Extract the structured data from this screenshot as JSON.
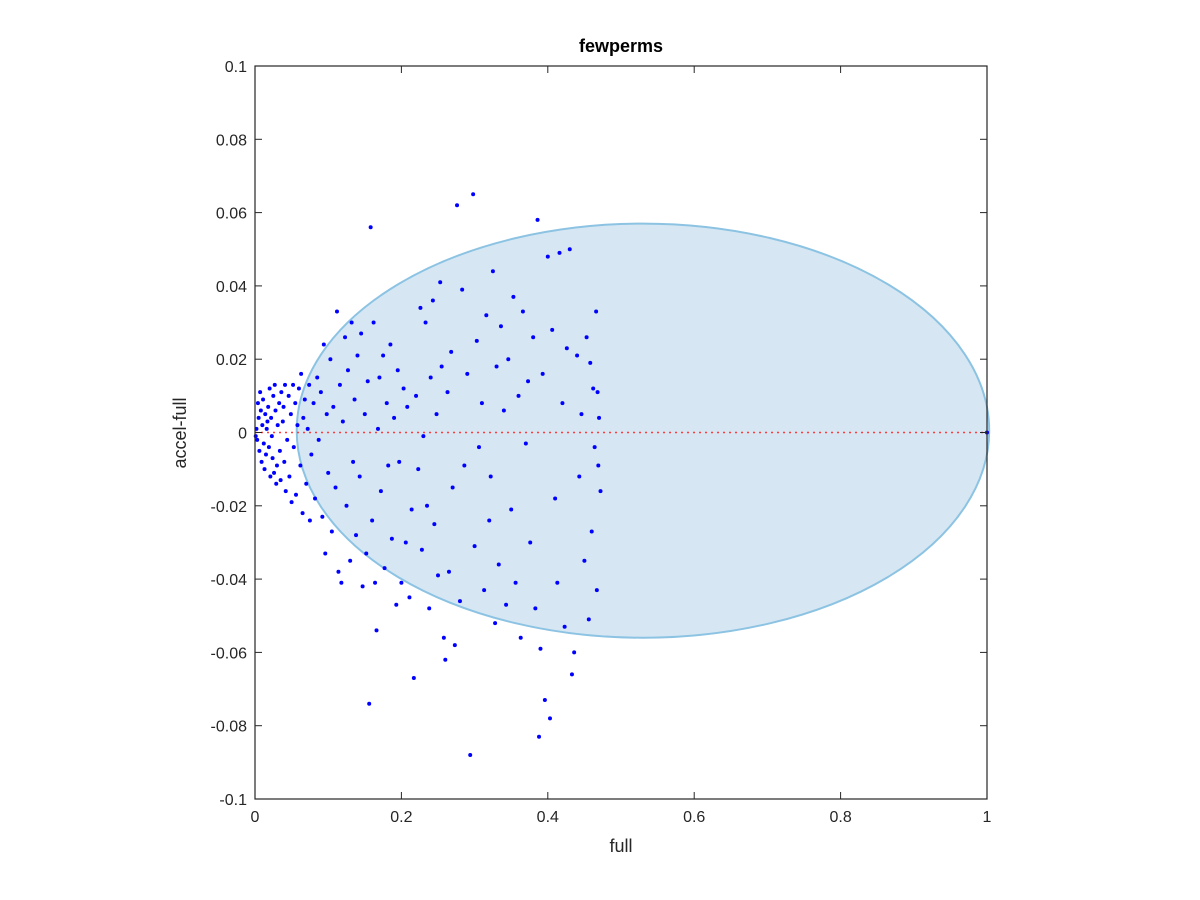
{
  "chart_data": {
    "type": "scatter",
    "title": "fewperms",
    "xlabel": "full",
    "ylabel": "accel-full",
    "xlim": [
      0,
      1
    ],
    "ylim": [
      -0.1,
      0.1
    ],
    "xticks": [
      0,
      0.2,
      0.4,
      0.6,
      0.8,
      1
    ],
    "xtick_labels": [
      "0",
      "0.2",
      "0.4",
      "0.6",
      "0.8",
      "1"
    ],
    "yticks": [
      -0.1,
      -0.08,
      -0.06,
      -0.04,
      -0.02,
      0,
      0.02,
      0.04,
      0.06,
      0.08,
      0.1
    ],
    "ytick_labels": [
      "-0.1",
      "-0.08",
      "-0.06",
      "-0.04",
      "-0.02",
      "0",
      "0.02",
      "0.04",
      "0.06",
      "0.08",
      "0.1"
    ],
    "grid": false,
    "reference_line": {
      "y": 0,
      "x_range": [
        0,
        1
      ],
      "style": "dotted",
      "color": "#ff3b3b"
    },
    "region": {
      "shape": "ellipse",
      "center": [
        0.53,
        0.0005
      ],
      "semi_axes": [
        0.473,
        0.0565
      ],
      "fill": "#d6e7f3",
      "stroke": "#8cc3e3"
    },
    "colors": {
      "points": "#0000ff",
      "axes": "#262626"
    },
    "points": [
      [
        0.005,
        0.004
      ],
      [
        0.003,
        -0.002
      ],
      [
        0.008,
        0.006
      ],
      [
        0.006,
        -0.005
      ],
      [
        0.01,
        0.002
      ],
      [
        0.002,
        0.001
      ],
      [
        0.004,
        0.008
      ],
      [
        0.012,
        -0.003
      ],
      [
        0.007,
        0.011
      ],
      [
        0.009,
        -0.008
      ],
      [
        0.014,
        0.005
      ],
      [
        0.015,
        -0.006
      ],
      [
        0.011,
        0.009
      ],
      [
        0.013,
        -0.01
      ],
      [
        0.016,
        0.001
      ],
      [
        0.018,
        0.007
      ],
      [
        0.019,
        -0.004
      ],
      [
        0.02,
        0.012
      ],
      [
        0.021,
        -0.012
      ],
      [
        0.017,
        0.003
      ],
      [
        0.022,
        0.004
      ],
      [
        0.024,
        -0.007
      ],
      [
        0.025,
        0.01
      ],
      [
        0.026,
        -0.011
      ],
      [
        0.023,
        -0.001
      ],
      [
        0.028,
        0.006
      ],
      [
        0.03,
        -0.009
      ],
      [
        0.027,
        0.013
      ],
      [
        0.029,
        -0.014
      ],
      [
        0.031,
        0.002
      ],
      [
        0.033,
        0.008
      ],
      [
        0.034,
        -0.005
      ],
      [
        0.036,
        0.011
      ],
      [
        0.035,
        -0.013
      ],
      [
        0.038,
        0.003
      ],
      [
        0.04,
        -0.008
      ],
      [
        0.041,
        0.013
      ],
      [
        0.042,
        -0.016
      ],
      [
        0.039,
        0.007
      ],
      [
        0.044,
        -0.002
      ],
      [
        0.046,
        0.01
      ],
      [
        0.047,
        -0.012
      ],
      [
        0.049,
        0.005
      ],
      [
        0.05,
        -0.019
      ],
      [
        0.052,
        0.013
      ],
      [
        0.053,
        -0.004
      ],
      [
        0.055,
        0.008
      ],
      [
        0.056,
        -0.017
      ],
      [
        0.058,
        0.002
      ],
      [
        0.06,
        0.012
      ],
      [
        0.062,
        -0.009
      ],
      [
        0.063,
        0.016
      ],
      [
        0.065,
        -0.022
      ],
      [
        0.066,
        0.004
      ],
      [
        0.068,
        0.009
      ],
      [
        0.07,
        -0.014
      ],
      [
        0.072,
        0.001
      ],
      [
        0.074,
        0.013
      ],
      [
        0.075,
        -0.024
      ],
      [
        0.077,
        -0.006
      ],
      [
        0.08,
        0.008
      ],
      [
        0.082,
        -0.018
      ],
      [
        0.085,
        0.015
      ],
      [
        0.087,
        -0.002
      ],
      [
        0.09,
        0.011
      ],
      [
        0.092,
        -0.023
      ],
      [
        0.094,
        0.024
      ],
      [
        0.096,
        -0.033
      ],
      [
        0.098,
        0.005
      ],
      [
        0.1,
        -0.011
      ],
      [
        0.103,
        0.02
      ],
      [
        0.105,
        -0.027
      ],
      [
        0.107,
        0.007
      ],
      [
        0.11,
        -0.015
      ],
      [
        0.112,
        0.033
      ],
      [
        0.114,
        -0.038
      ],
      [
        0.116,
        0.013
      ],
      [
        0.118,
        -0.041
      ],
      [
        0.12,
        0.003
      ],
      [
        0.123,
        0.026
      ],
      [
        0.125,
        -0.02
      ],
      [
        0.127,
        0.017
      ],
      [
        0.13,
        -0.035
      ],
      [
        0.132,
        0.03
      ],
      [
        0.134,
        -0.008
      ],
      [
        0.136,
        0.009
      ],
      [
        0.138,
        -0.028
      ],
      [
        0.14,
        0.021
      ],
      [
        0.143,
        -0.012
      ],
      [
        0.145,
        0.027
      ],
      [
        0.147,
        -0.042
      ],
      [
        0.15,
        0.005
      ],
      [
        0.152,
        -0.033
      ],
      [
        0.154,
        0.014
      ],
      [
        0.156,
        -0.074
      ],
      [
        0.158,
        0.056
      ],
      [
        0.16,
        -0.024
      ],
      [
        0.162,
        0.03
      ],
      [
        0.164,
        -0.041
      ],
      [
        0.166,
        -0.054
      ],
      [
        0.168,
        0.001
      ],
      [
        0.17,
        0.015
      ],
      [
        0.172,
        -0.016
      ],
      [
        0.175,
        0.021
      ],
      [
        0.177,
        -0.037
      ],
      [
        0.18,
        0.008
      ],
      [
        0.182,
        -0.009
      ],
      [
        0.185,
        0.024
      ],
      [
        0.187,
        -0.029
      ],
      [
        0.19,
        0.004
      ],
      [
        0.193,
        -0.047
      ],
      [
        0.195,
        0.017
      ],
      [
        0.197,
        -0.008
      ],
      [
        0.2,
        -0.041
      ],
      [
        0.203,
        0.012
      ],
      [
        0.206,
        -0.03
      ],
      [
        0.208,
        0.007
      ],
      [
        0.211,
        -0.045
      ],
      [
        0.214,
        -0.021
      ],
      [
        0.217,
        -0.067
      ],
      [
        0.22,
        0.01
      ],
      [
        0.223,
        -0.01
      ],
      [
        0.226,
        0.034
      ],
      [
        0.228,
        -0.032
      ],
      [
        0.23,
        -0.001
      ],
      [
        0.233,
        0.03
      ],
      [
        0.235,
        -0.02
      ],
      [
        0.238,
        -0.048
      ],
      [
        0.24,
        0.015
      ],
      [
        0.243,
        0.036
      ],
      [
        0.245,
        -0.025
      ],
      [
        0.248,
        0.005
      ],
      [
        0.25,
        -0.039
      ],
      [
        0.253,
        0.041
      ],
      [
        0.255,
        0.018
      ],
      [
        0.258,
        -0.056
      ],
      [
        0.26,
        -0.062
      ],
      [
        0.263,
        0.011
      ],
      [
        0.265,
        -0.038
      ],
      [
        0.268,
        0.022
      ],
      [
        0.27,
        -0.015
      ],
      [
        0.273,
        -0.058
      ],
      [
        0.276,
        0.062
      ],
      [
        0.28,
        -0.046
      ],
      [
        0.283,
        0.039
      ],
      [
        0.286,
        -0.009
      ],
      [
        0.29,
        0.016
      ],
      [
        0.294,
        -0.088
      ],
      [
        0.298,
        0.065
      ],
      [
        0.3,
        -0.031
      ],
      [
        0.303,
        0.025
      ],
      [
        0.306,
        -0.004
      ],
      [
        0.31,
        0.008
      ],
      [
        0.313,
        -0.043
      ],
      [
        0.316,
        0.032
      ],
      [
        0.32,
        -0.024
      ],
      [
        0.322,
        -0.012
      ],
      [
        0.325,
        0.044
      ],
      [
        0.328,
        -0.052
      ],
      [
        0.33,
        0.018
      ],
      [
        0.333,
        -0.036
      ],
      [
        0.336,
        0.029
      ],
      [
        0.34,
        0.006
      ],
      [
        0.343,
        -0.047
      ],
      [
        0.346,
        0.02
      ],
      [
        0.35,
        -0.021
      ],
      [
        0.353,
        0.037
      ],
      [
        0.356,
        -0.041
      ],
      [
        0.36,
        0.01
      ],
      [
        0.363,
        -0.056
      ],
      [
        0.366,
        0.033
      ],
      [
        0.37,
        -0.003
      ],
      [
        0.373,
        0.014
      ],
      [
        0.376,
        -0.03
      ],
      [
        0.38,
        0.026
      ],
      [
        0.383,
        -0.048
      ],
      [
        0.386,
        0.058
      ],
      [
        0.388,
        -0.083
      ],
      [
        0.39,
        -0.059
      ],
      [
        0.393,
        0.016
      ],
      [
        0.396,
        -0.073
      ],
      [
        0.4,
        0.048
      ],
      [
        0.403,
        -0.078
      ],
      [
        0.406,
        0.028
      ],
      [
        0.41,
        -0.018
      ],
      [
        0.413,
        -0.041
      ],
      [
        0.416,
        0.049
      ],
      [
        0.42,
        0.008
      ],
      [
        0.423,
        -0.053
      ],
      [
        0.426,
        0.023
      ],
      [
        0.43,
        0.05
      ],
      [
        0.433,
        -0.066
      ],
      [
        0.436,
        -0.06
      ],
      [
        0.44,
        0.021
      ],
      [
        0.443,
        -0.012
      ],
      [
        0.446,
        0.005
      ],
      [
        0.45,
        -0.035
      ],
      [
        0.453,
        0.026
      ],
      [
        0.456,
        -0.051
      ],
      [
        0.458,
        0.019
      ],
      [
        0.46,
        -0.027
      ],
      [
        0.462,
        0.012
      ],
      [
        0.464,
        -0.004
      ],
      [
        0.466,
        0.033
      ],
      [
        0.467,
        -0.043
      ],
      [
        0.468,
        0.011
      ],
      [
        0.469,
        -0.009
      ],
      [
        0.47,
        0.004
      ],
      [
        0.472,
        -0.016
      ],
      [
        0.001,
        -0.001
      ],
      [
        1.0,
        0.0
      ]
    ]
  }
}
